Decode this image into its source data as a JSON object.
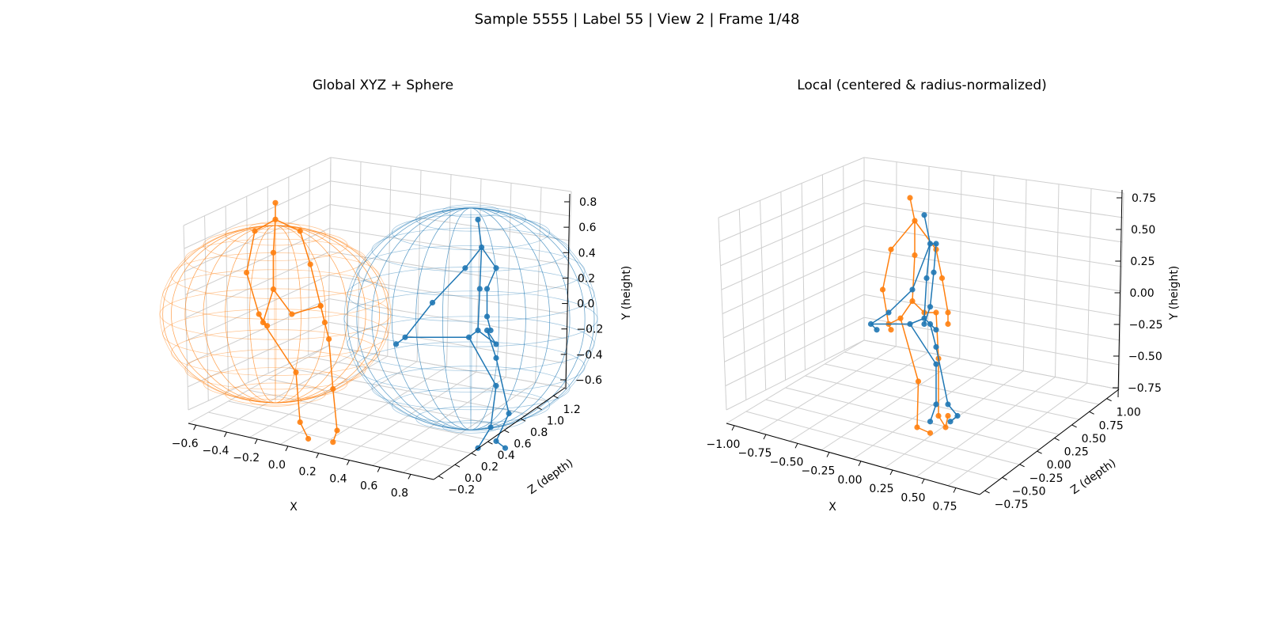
{
  "figure": {
    "suptitle": "Sample 5555 | Label 55 | View 2 | Frame 1/48"
  },
  "colors": {
    "series_a": "#ff7f0e",
    "series_b": "#1f77b4",
    "grid": "#cfcfcf",
    "axis": "#000000"
  },
  "chart_data": [
    {
      "type": "scatter",
      "projection": "3d",
      "title": "Global XYZ + Sphere",
      "xlabel": "X",
      "ylabel": "Y (height)",
      "zlabel": "Z (depth)",
      "x_ticks": [
        "−0.6",
        "−0.4",
        "−0.2",
        "0.0",
        "0.2",
        "0.4",
        "0.6",
        "0.8"
      ],
      "y_ticks": [
        "−0.6",
        "−0.4",
        "−0.2",
        "0.0",
        "0.2",
        "0.4",
        "0.6",
        "0.8"
      ],
      "z_ticks": [
        "−0.2",
        "0.0",
        "0.2",
        "0.4",
        "0.6",
        "0.8",
        "1.0",
        "1.2"
      ],
      "xlim": [
        -0.7,
        0.85
      ],
      "ylim": [
        -0.7,
        0.85
      ],
      "zlim": [
        -0.3,
        1.3
      ],
      "grid": true,
      "series": [
        {
          "color": "#ff7f0e",
          "sphere": {
            "center": [
              -0.42,
              0.05,
              0.1
            ],
            "radius": 0.55
          },
          "joints": [
            [
              -0.43,
              0.2,
              0.0
            ],
            [
              -0.43,
              0.42,
              0.0
            ],
            [
              -0.42,
              0.62,
              0.0
            ],
            [
              -0.42,
              0.72,
              0.0
            ],
            [
              -0.52,
              0.55,
              0.0
            ],
            [
              -0.56,
              0.3,
              0.0
            ],
            [
              -0.5,
              0.05,
              0.0
            ],
            [
              -0.46,
              -0.02,
              0.0
            ],
            [
              -0.3,
              0.55,
              0.0
            ],
            [
              -0.25,
              0.35,
              0.0
            ],
            [
              -0.2,
              0.1,
              0.0
            ],
            [
              -0.18,
              0.0,
              0.0
            ],
            [
              -0.48,
              0.0,
              0.0
            ],
            [
              -0.34,
              0.05,
              0.0
            ],
            [
              -0.32,
              -0.3,
              0.0
            ],
            [
              -0.3,
              -0.6,
              0.0
            ],
            [
              -0.26,
              -0.7,
              0.0
            ],
            [
              -0.2,
              0.1,
              0.0
            ],
            [
              -0.16,
              -0.1,
              0.0
            ],
            [
              -0.14,
              -0.4,
              0.0
            ],
            [
              -0.12,
              -0.65,
              0.0
            ],
            [
              -0.14,
              -0.72,
              0.0
            ]
          ]
        },
        {
          "color": "#1f77b4",
          "sphere": {
            "center": [
              0.45,
              0.0,
              0.6
            ],
            "radius": 0.65
          },
          "joints": [
            [
              0.45,
              -0.1,
              0.6
            ],
            [
              0.46,
              0.2,
              0.6
            ],
            [
              0.47,
              0.5,
              0.6
            ],
            [
              0.45,
              0.7,
              0.6
            ],
            [
              0.38,
              0.35,
              0.6
            ],
            [
              0.2,
              0.1,
              0.6
            ],
            [
              0.05,
              -0.15,
              0.6
            ],
            [
              0.0,
              -0.2,
              0.6
            ],
            [
              0.55,
              0.35,
              0.6
            ],
            [
              0.5,
              0.2,
              0.6
            ],
            [
              0.5,
              0.0,
              0.6
            ],
            [
              0.52,
              -0.1,
              0.6
            ],
            [
              0.4,
              -0.15,
              0.6
            ],
            [
              0.55,
              -0.2,
              0.6
            ],
            [
              0.55,
              -0.5,
              0.6
            ],
            [
              0.52,
              -0.8,
              0.6
            ],
            [
              0.45,
              -0.95,
              0.6
            ],
            [
              0.5,
              -0.1,
              0.6
            ],
            [
              0.55,
              -0.3,
              0.6
            ],
            [
              0.62,
              -0.7,
              0.6
            ],
            [
              0.55,
              -0.9,
              0.6
            ],
            [
              0.6,
              -0.95,
              0.6
            ]
          ]
        }
      ]
    },
    {
      "type": "scatter",
      "projection": "3d",
      "title": "Local (centered & radius-normalized)",
      "xlabel": "X",
      "ylabel": "Y (height)",
      "zlabel": "Z (depth)",
      "x_ticks": [
        "−1.00",
        "−0.75",
        "−0.50",
        "−0.25",
        "0.00",
        "0.25",
        "0.50",
        "0.75"
      ],
      "y_ticks": [
        "−0.75",
        "−0.50",
        "−0.25",
        "0.00",
        "0.25",
        "0.50",
        "0.75"
      ],
      "z_ticks": [
        "−0.75",
        "−0.50",
        "−0.25",
        "0.00",
        "0.25",
        "0.50",
        "0.75",
        "1.00"
      ],
      "xlim": [
        -1.1,
        0.9
      ],
      "ylim": [
        -1.0,
        1.0
      ],
      "zlim": [
        -0.9,
        1.1
      ],
      "grid": true,
      "series": [
        {
          "color": "#ff7f0e",
          "joints": [
            [
              -0.1,
              0.1,
              0.0
            ],
            [
              -0.08,
              0.5,
              0.0
            ],
            [
              -0.08,
              0.8,
              0.0
            ],
            [
              -0.12,
              1.0,
              0.0
            ],
            [
              -0.28,
              0.55,
              0.0
            ],
            [
              -0.35,
              0.2,
              0.0
            ],
            [
              -0.3,
              -0.1,
              0.0
            ],
            [
              -0.28,
              -0.15,
              0.0
            ],
            [
              0.1,
              0.55,
              0.0
            ],
            [
              0.15,
              0.3,
              0.0
            ],
            [
              0.2,
              0.0,
              0.0
            ],
            [
              0.2,
              -0.1,
              0.0
            ],
            [
              -0.2,
              -0.05,
              0.0
            ],
            [
              0.0,
              0.0,
              0.0
            ],
            [
              -0.05,
              -0.6,
              0.0
            ],
            [
              -0.06,
              -1.0,
              0.0
            ],
            [
              0.05,
              -1.05,
              0.0
            ],
            [
              0.1,
              0.0,
              0.0
            ],
            [
              0.12,
              -0.4,
              0.0
            ],
            [
              0.12,
              -0.9,
              0.0
            ],
            [
              0.18,
              -1.0,
              0.0
            ],
            [
              0.2,
              -0.9,
              0.0
            ]
          ]
        },
        {
          "color": "#1f77b4",
          "joints": [
            [
              0.0,
              -0.05,
              0.0
            ],
            [
              0.02,
              0.3,
              0.0
            ],
            [
              0.05,
              0.6,
              0.0
            ],
            [
              0.0,
              0.85,
              0.0
            ],
            [
              -0.1,
              0.2,
              0.0
            ],
            [
              -0.3,
              0.0,
              0.0
            ],
            [
              -0.45,
              -0.1,
              0.0
            ],
            [
              -0.4,
              -0.15,
              0.0
            ],
            [
              0.1,
              0.6,
              0.0
            ],
            [
              0.08,
              0.35,
              0.0
            ],
            [
              0.05,
              0.05,
              0.0
            ],
            [
              0.0,
              -0.1,
              0.0
            ],
            [
              -0.12,
              -0.1,
              0.0
            ],
            [
              0.1,
              -0.15,
              0.0
            ],
            [
              0.1,
              -0.45,
              0.0
            ],
            [
              0.1,
              -0.8,
              0.0
            ],
            [
              0.05,
              -0.95,
              0.0
            ],
            [
              0.05,
              -0.1,
              0.0
            ],
            [
              0.1,
              -0.3,
              0.0
            ],
            [
              0.2,
              -0.8,
              0.0
            ],
            [
              0.28,
              -0.9,
              0.0
            ],
            [
              0.22,
              -0.95,
              0.0
            ]
          ]
        }
      ]
    }
  ]
}
